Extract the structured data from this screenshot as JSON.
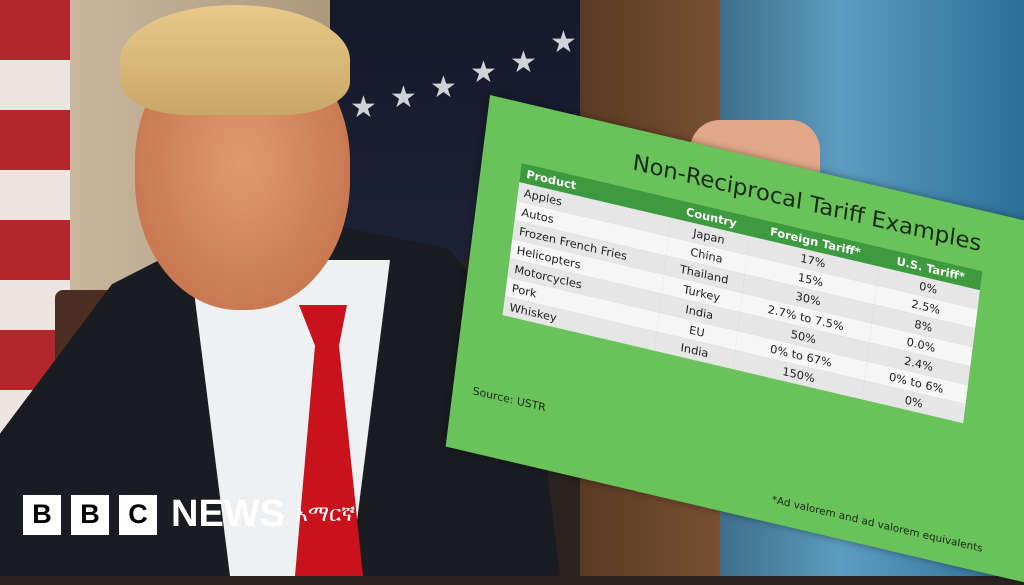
{
  "sign": {
    "title": "Non-Reciprocal Tariff Examples",
    "columns": [
      "Product",
      "Country",
      "Foreign Tariff*",
      "U.S. Tariff*"
    ],
    "rows": [
      [
        "Apples",
        "Japan",
        "17%",
        "0%"
      ],
      [
        "Autos",
        "China",
        "15%",
        "2.5%"
      ],
      [
        "Frozen French Fries",
        "Thailand",
        "30%",
        "8%"
      ],
      [
        "Helicopters",
        "Turkey",
        "2.7% to 7.5%",
        "0.0%"
      ],
      [
        "Motorcycles",
        "India",
        "50%",
        "2.4%"
      ],
      [
        "Pork",
        "EU",
        "0% to 67%",
        "0% to 6%"
      ],
      [
        "Whiskey",
        "India",
        "150%",
        "0%"
      ]
    ],
    "source": "Source: USTR",
    "footnote": "*Ad valorem and ad valorem equivalents",
    "color": "#6ac25a",
    "header_color": "#3e9a3e"
  },
  "logo": {
    "letters": [
      "B",
      "B",
      "C"
    ],
    "news": "NEWS",
    "language": "አማርኛ"
  }
}
